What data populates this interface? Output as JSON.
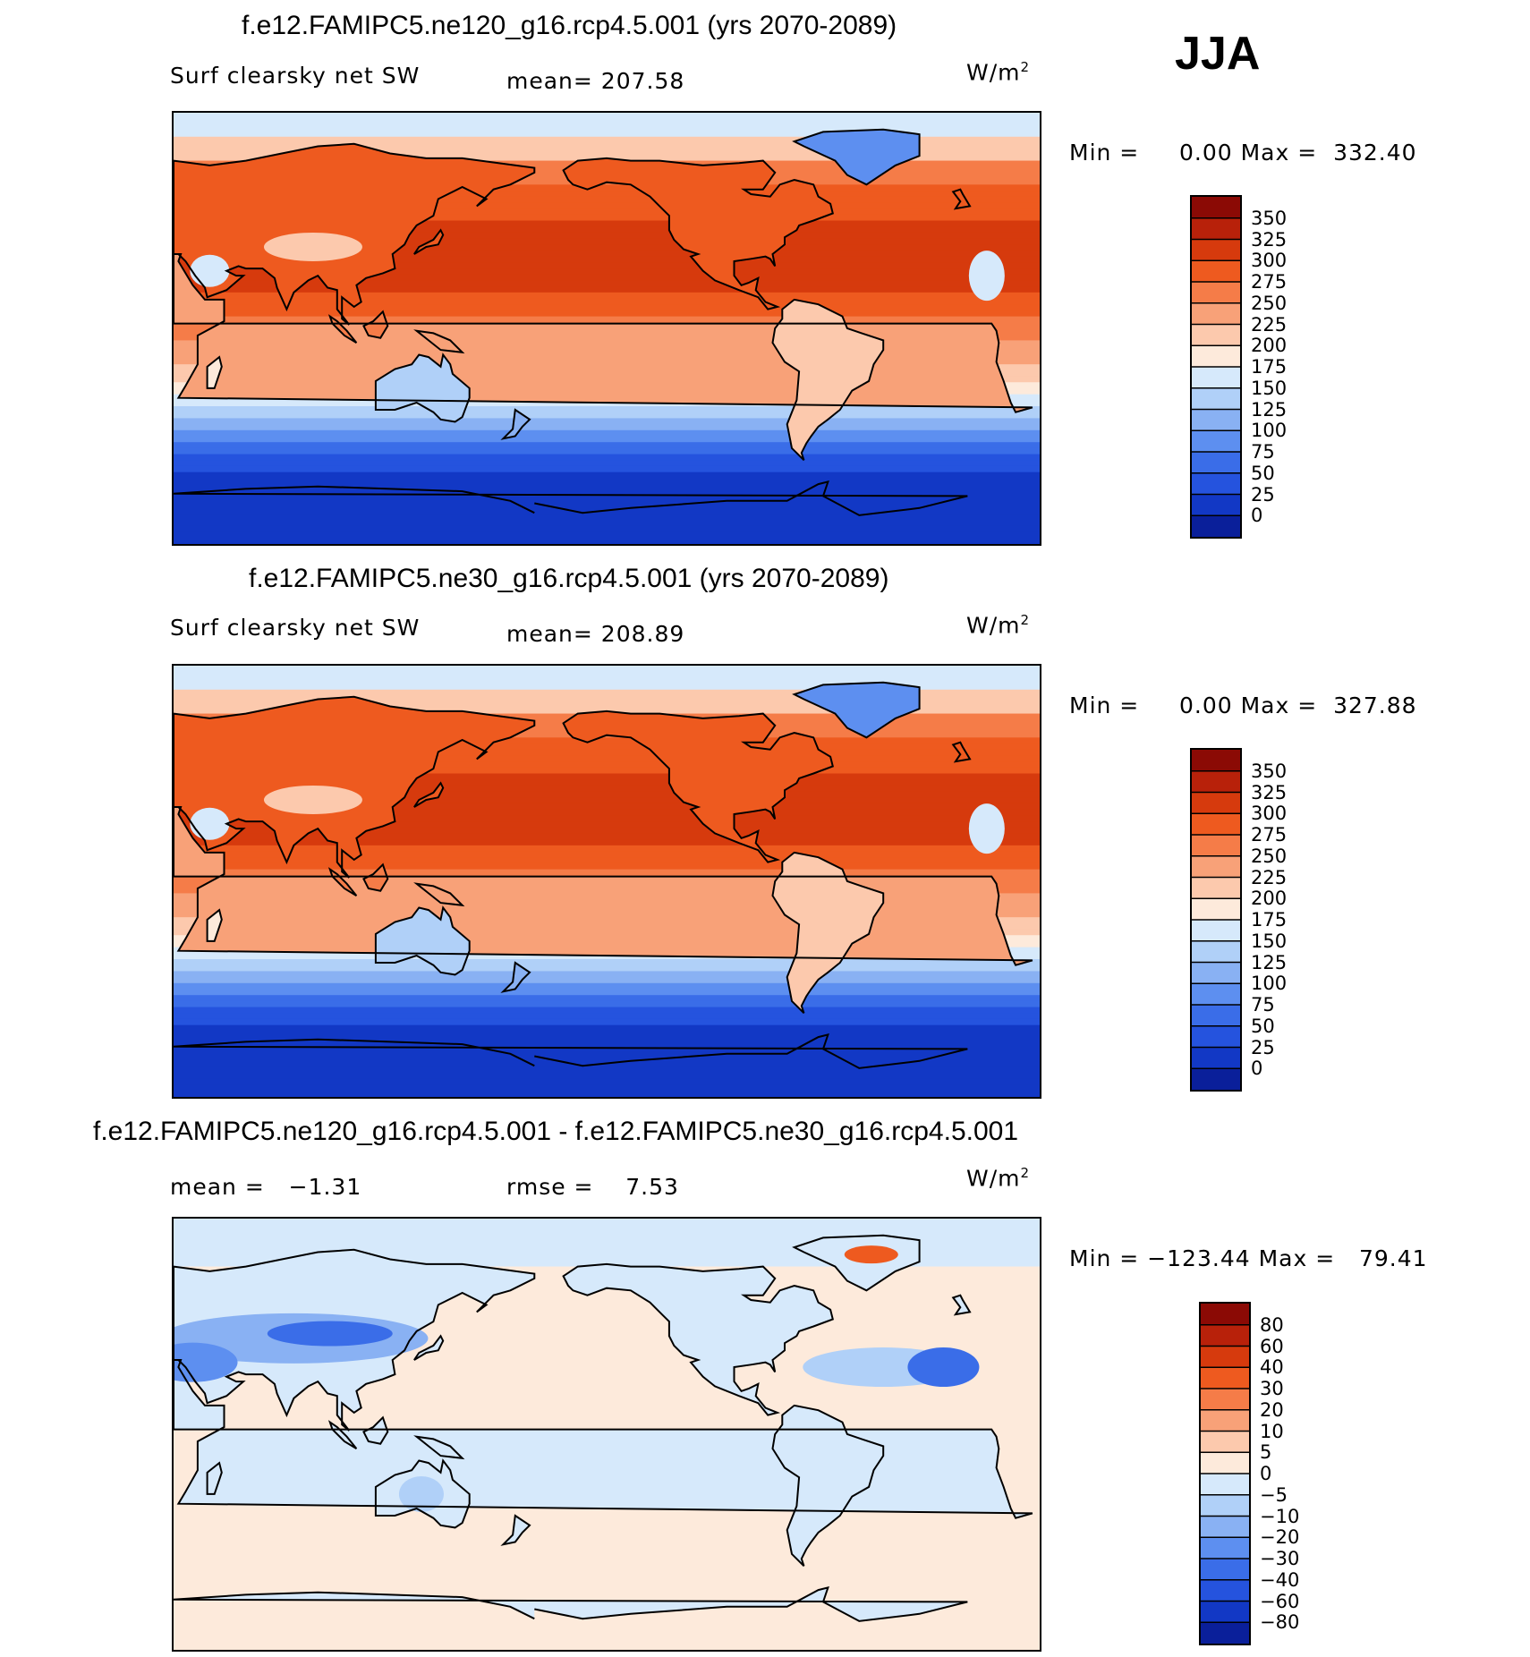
{
  "season": "JJA",
  "panels": [
    {
      "title": "f.e12.FAMIPC5.ne120_g16.rcp4.5.001 (yrs 2070-2089)",
      "left_label": "Surf clearsky net SW",
      "center_label": "mean= 207.58",
      "units_base": "W/m",
      "units_exp": "2",
      "minmax": "Min =     0.00 Max =  332.40",
      "kind": "field",
      "colorbar": {
        "ticks": [
          "350",
          "325",
          "300",
          "275",
          "250",
          "225",
          "200",
          "175",
          "150",
          "125",
          "100",
          "75",
          "50",
          "25",
          "0"
        ],
        "colors": [
          "#8b0a05",
          "#b8210a",
          "#d63a0d",
          "#ee5a1f",
          "#f57c48",
          "#f8a178",
          "#fcc9ad",
          "#fdeadb",
          "#d6e9fb",
          "#b0d0f8",
          "#89b1f3",
          "#5d8ff0",
          "#3a6de8",
          "#2553de",
          "#1238c5",
          "#0a1f9a"
        ]
      }
    },
    {
      "title": "f.e12.FAMIPC5.ne30_g16.rcp4.5.001 (yrs 2070-2089)",
      "left_label": "Surf clearsky net SW",
      "center_label": "mean= 208.89",
      "units_base": "W/m",
      "units_exp": "2",
      "minmax": "Min =     0.00 Max =  327.88",
      "kind": "field",
      "colorbar": {
        "ticks": [
          "350",
          "325",
          "300",
          "275",
          "250",
          "225",
          "200",
          "175",
          "150",
          "125",
          "100",
          "75",
          "50",
          "25",
          "0"
        ],
        "colors": [
          "#8b0a05",
          "#b8210a",
          "#d63a0d",
          "#ee5a1f",
          "#f57c48",
          "#f8a178",
          "#fcc9ad",
          "#fdeadb",
          "#d6e9fb",
          "#b0d0f8",
          "#89b1f3",
          "#5d8ff0",
          "#3a6de8",
          "#2553de",
          "#1238c5",
          "#0a1f9a"
        ]
      }
    },
    {
      "title": "f.e12.FAMIPC5.ne120_g16.rcp4.5.001 - f.e12.FAMIPC5.ne30_g16.rcp4.5.001",
      "left_label": "mean =   −1.31",
      "center_label": "rmse =    7.53",
      "units_base": "W/m",
      "units_exp": "2",
      "minmax": "Min = −123.44 Max =   79.41",
      "kind": "diff",
      "colorbar": {
        "ticks": [
          "80",
          "60",
          "40",
          "30",
          "20",
          "10",
          "5",
          "0",
          "−5",
          "−10",
          "−20",
          "−30",
          "−40",
          "−60",
          "−80"
        ],
        "colors": [
          "#8b0a05",
          "#b8210a",
          "#d63a0d",
          "#ee5a1f",
          "#f57c48",
          "#f8a178",
          "#fcc9ad",
          "#fdeadb",
          "#d6e9fb",
          "#b0d0f8",
          "#89b1f3",
          "#5d8ff0",
          "#3a6de8",
          "#2553de",
          "#1238c5",
          "#0a1f9a"
        ]
      }
    }
  ]
}
